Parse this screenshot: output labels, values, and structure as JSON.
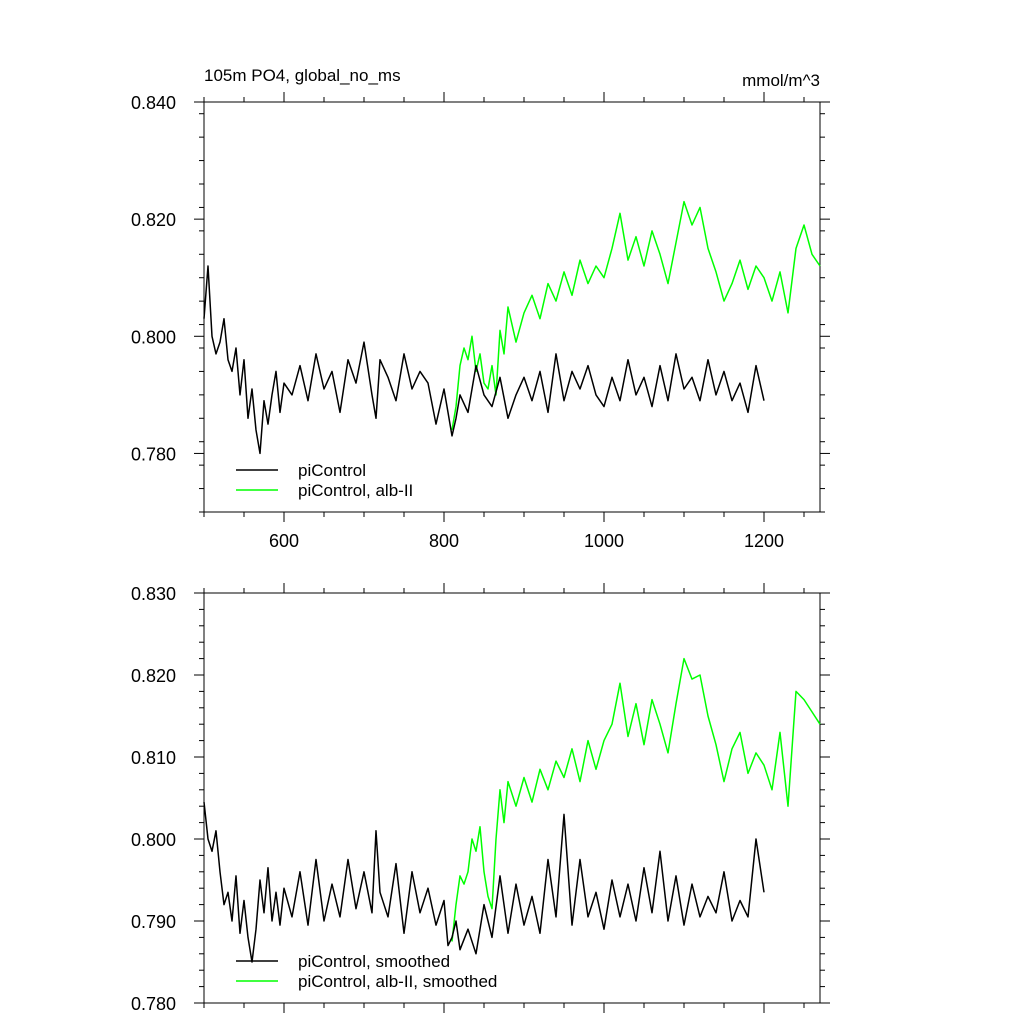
{
  "header": {
    "title": "105m PO4, global_no_ms",
    "units": "mmol/m^3"
  },
  "colors": {
    "control": "#000000",
    "experiment": "#00ff00",
    "axis": "#000000"
  },
  "chart_data": [
    {
      "type": "line",
      "title": "105m PO4, global_no_ms",
      "units": "mmol/m^3",
      "xlim": [
        500,
        1270
      ],
      "ylim": [
        0.77,
        0.84
      ],
      "xticks": [
        600,
        800,
        1000,
        1200
      ],
      "xtick_labels": [
        "600",
        "800",
        "1000",
        "1200"
      ],
      "yticks": [
        0.78,
        0.8,
        0.82,
        0.84
      ],
      "ytick_labels": [
        "0.780",
        "0.800",
        "0.820",
        "0.840"
      ],
      "grid": false,
      "legend_position": "bottom-left",
      "series": [
        {
          "name": "piControl",
          "color": "#000000",
          "x": [
            500,
            505,
            510,
            515,
            520,
            525,
            530,
            535,
            540,
            545,
            550,
            555,
            560,
            565,
            570,
            575,
            580,
            585,
            590,
            595,
            600,
            610,
            620,
            630,
            640,
            650,
            660,
            670,
            680,
            690,
            700,
            710,
            715,
            720,
            730,
            740,
            750,
            760,
            770,
            780,
            790,
            800,
            805,
            810,
            815,
            820,
            830,
            840,
            850,
            860,
            870,
            880,
            890,
            900,
            910,
            920,
            930,
            940,
            950,
            960,
            970,
            980,
            990,
            1000,
            1010,
            1020,
            1030,
            1040,
            1050,
            1060,
            1070,
            1080,
            1090,
            1100,
            1110,
            1120,
            1130,
            1140,
            1150,
            1160,
            1170,
            1180,
            1190,
            1200
          ],
          "y": [
            0.803,
            0.812,
            0.8,
            0.797,
            0.799,
            0.803,
            0.796,
            0.794,
            0.798,
            0.79,
            0.796,
            0.786,
            0.791,
            0.784,
            0.78,
            0.789,
            0.785,
            0.79,
            0.794,
            0.787,
            0.792,
            0.79,
            0.795,
            0.789,
            0.797,
            0.791,
            0.794,
            0.787,
            0.796,
            0.792,
            0.799,
            0.79,
            0.786,
            0.796,
            0.793,
            0.789,
            0.797,
            0.791,
            0.794,
            0.792,
            0.785,
            0.791,
            0.787,
            0.783,
            0.786,
            0.79,
            0.787,
            0.795,
            0.79,
            0.788,
            0.793,
            0.786,
            0.79,
            0.793,
            0.789,
            0.794,
            0.787,
            0.797,
            0.789,
            0.794,
            0.791,
            0.795,
            0.79,
            0.788,
            0.793,
            0.789,
            0.796,
            0.79,
            0.793,
            0.788,
            0.795,
            0.789,
            0.797,
            0.791,
            0.793,
            0.789,
            0.796,
            0.79,
            0.794,
            0.789,
            0.792,
            0.787,
            0.795,
            0.789
          ]
        },
        {
          "name": "piControl, alb-II",
          "color": "#00ff00",
          "x": [
            810,
            815,
            820,
            825,
            830,
            835,
            840,
            845,
            850,
            855,
            860,
            865,
            870,
            875,
            880,
            890,
            900,
            910,
            920,
            930,
            940,
            950,
            960,
            970,
            980,
            990,
            1000,
            1010,
            1020,
            1030,
            1040,
            1050,
            1060,
            1070,
            1080,
            1090,
            1100,
            1110,
            1120,
            1130,
            1140,
            1150,
            1160,
            1170,
            1180,
            1190,
            1200,
            1210,
            1220,
            1230,
            1240,
            1250,
            1260,
            1270
          ],
          "y": [
            0.784,
            0.788,
            0.795,
            0.798,
            0.796,
            0.8,
            0.794,
            0.797,
            0.792,
            0.791,
            0.795,
            0.79,
            0.801,
            0.797,
            0.805,
            0.799,
            0.804,
            0.807,
            0.803,
            0.809,
            0.806,
            0.811,
            0.807,
            0.813,
            0.809,
            0.812,
            0.81,
            0.815,
            0.821,
            0.813,
            0.817,
            0.812,
            0.818,
            0.814,
            0.809,
            0.816,
            0.823,
            0.819,
            0.822,
            0.815,
            0.811,
            0.806,
            0.809,
            0.813,
            0.808,
            0.812,
            0.81,
            0.806,
            0.811,
            0.804,
            0.815,
            0.819,
            0.814,
            0.812
          ]
        }
      ]
    },
    {
      "type": "line",
      "xlim": [
        500,
        1270
      ],
      "ylim": [
        0.78,
        0.83
      ],
      "xticks": [
        600,
        800,
        1000,
        1200
      ],
      "yticks": [
        0.78,
        0.79,
        0.8,
        0.81,
        0.82,
        0.83
      ],
      "ytick_labels": [
        "0.780",
        "0.790",
        "0.800",
        "0.810",
        "0.820",
        "0.830"
      ],
      "grid": false,
      "legend_position": "bottom-left",
      "series": [
        {
          "name": "piControl, smoothed",
          "color": "#000000",
          "x": [
            500,
            505,
            510,
            515,
            520,
            525,
            530,
            535,
            540,
            545,
            550,
            555,
            560,
            565,
            570,
            575,
            580,
            585,
            590,
            595,
            600,
            610,
            620,
            630,
            640,
            650,
            660,
            670,
            680,
            690,
            700,
            710,
            715,
            720,
            730,
            740,
            750,
            760,
            770,
            780,
            790,
            800,
            805,
            810,
            815,
            820,
            830,
            840,
            850,
            860,
            870,
            880,
            890,
            900,
            910,
            920,
            930,
            940,
            950,
            960,
            970,
            980,
            990,
            1000,
            1010,
            1020,
            1030,
            1040,
            1050,
            1060,
            1070,
            1080,
            1090,
            1100,
            1110,
            1120,
            1130,
            1140,
            1150,
            1160,
            1170,
            1180,
            1190,
            1200
          ],
          "y": [
            0.8045,
            0.8,
            0.7985,
            0.801,
            0.796,
            0.792,
            0.7935,
            0.79,
            0.7955,
            0.7885,
            0.7925,
            0.788,
            0.785,
            0.789,
            0.795,
            0.791,
            0.7965,
            0.79,
            0.7935,
            0.7895,
            0.794,
            0.7905,
            0.796,
            0.7895,
            0.7975,
            0.79,
            0.7945,
            0.7905,
            0.7975,
            0.7915,
            0.796,
            0.791,
            0.801,
            0.7935,
            0.7905,
            0.797,
            0.7885,
            0.796,
            0.791,
            0.794,
            0.7895,
            0.7925,
            0.787,
            0.788,
            0.79,
            0.7865,
            0.789,
            0.786,
            0.792,
            0.788,
            0.7955,
            0.7885,
            0.7945,
            0.7895,
            0.793,
            0.7885,
            0.7975,
            0.7905,
            0.803,
            0.7895,
            0.7975,
            0.7905,
            0.7935,
            0.789,
            0.795,
            0.7905,
            0.7945,
            0.79,
            0.7965,
            0.791,
            0.7985,
            0.79,
            0.7955,
            0.7895,
            0.7945,
            0.7905,
            0.793,
            0.791,
            0.796,
            0.79,
            0.7925,
            0.7905,
            0.8,
            0.7935
          ]
        },
        {
          "name": "piControl, alb-II, smoothed",
          "color": "#00ff00",
          "x": [
            810,
            815,
            820,
            825,
            830,
            835,
            840,
            845,
            850,
            855,
            860,
            865,
            870,
            875,
            880,
            890,
            900,
            910,
            920,
            930,
            940,
            950,
            960,
            970,
            980,
            990,
            1000,
            1010,
            1020,
            1030,
            1040,
            1050,
            1060,
            1070,
            1080,
            1090,
            1100,
            1110,
            1120,
            1130,
            1140,
            1150,
            1160,
            1170,
            1180,
            1190,
            1200,
            1210,
            1220,
            1230,
            1240,
            1250,
            1260,
            1270
          ],
          "y": [
            0.7875,
            0.792,
            0.7955,
            0.7945,
            0.796,
            0.8,
            0.7985,
            0.8015,
            0.796,
            0.793,
            0.7915,
            0.8,
            0.806,
            0.802,
            0.807,
            0.804,
            0.8075,
            0.8045,
            0.8085,
            0.806,
            0.8095,
            0.8075,
            0.811,
            0.807,
            0.812,
            0.8085,
            0.812,
            0.814,
            0.819,
            0.8125,
            0.8165,
            0.8115,
            0.817,
            0.814,
            0.8105,
            0.8165,
            0.822,
            0.8195,
            0.82,
            0.815,
            0.8115,
            0.807,
            0.811,
            0.813,
            0.808,
            0.8105,
            0.809,
            0.806,
            0.813,
            0.804,
            0.818,
            0.817,
            0.8155,
            0.814
          ]
        }
      ]
    }
  ]
}
